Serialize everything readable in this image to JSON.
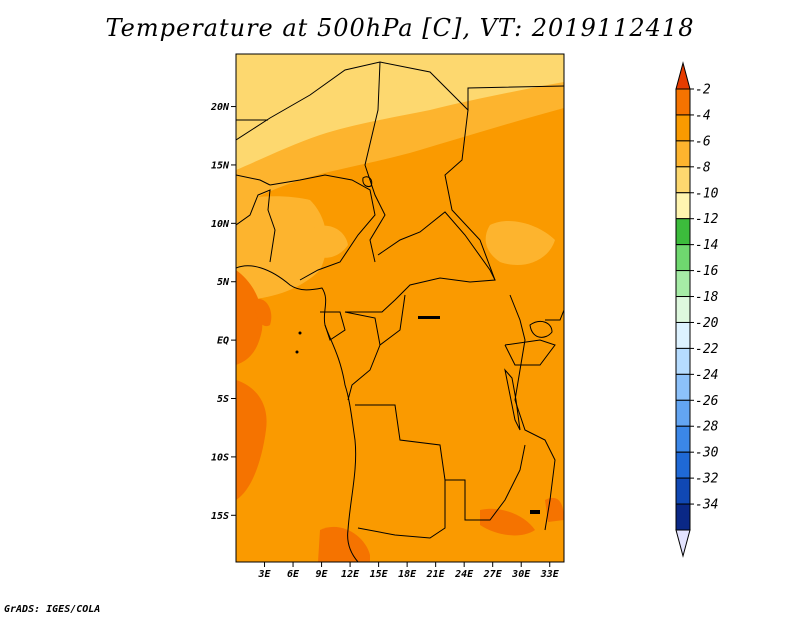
{
  "title": "Temperature at 500hPa [C], VT: 2019112418",
  "footer": "GrADS: IGES/COLA",
  "map": {
    "lat_range": [
      -19,
      24.5
    ],
    "lon_range": [
      0,
      34.5
    ],
    "lat_ticks": [
      {
        "value": 20,
        "label": "20N"
      },
      {
        "value": 15,
        "label": "15N"
      },
      {
        "value": 10,
        "label": "10N"
      },
      {
        "value": 5,
        "label": "5N"
      },
      {
        "value": 0,
        "label": "EQ"
      },
      {
        "value": -5,
        "label": "5S"
      },
      {
        "value": -10,
        "label": "10S"
      },
      {
        "value": -15,
        "label": "15S"
      }
    ],
    "lon_ticks": [
      {
        "value": 3,
        "label": "3E"
      },
      {
        "value": 6,
        "label": "6E"
      },
      {
        "value": 9,
        "label": "9E"
      },
      {
        "value": 12,
        "label": "12E"
      },
      {
        "value": 15,
        "label": "15E"
      },
      {
        "value": 18,
        "label": "18E"
      },
      {
        "value": 21,
        "label": "21E"
      },
      {
        "value": 24,
        "label": "24E"
      },
      {
        "value": 27,
        "label": "27E"
      },
      {
        "value": 30,
        "label": "30E"
      },
      {
        "value": 33,
        "label": "33E"
      }
    ]
  },
  "colorbar": {
    "colors": [
      "#e63c00",
      "#f57300",
      "#fa9a00",
      "#fdb42e",
      "#fdd86f",
      "#fff5b0",
      "#3cbc3c",
      "#6fd86f",
      "#a6eca6",
      "#def8de",
      "#ddf2ff",
      "#b6dcff",
      "#8cc1fa",
      "#63a5f2",
      "#3b87e8",
      "#1f69d6",
      "#1048b4",
      "#0a2886",
      "#05105a"
    ],
    "top_color": "#e63c00",
    "bottom_color": "#e4e4ff",
    "labels": [
      "-2",
      "-4",
      "-6",
      "-8",
      "-10",
      "-12",
      "-14",
      "-16",
      "-18",
      "-20",
      "-22",
      "-24",
      "-26",
      "-28",
      "-30",
      "-32",
      "-34"
    ]
  }
}
